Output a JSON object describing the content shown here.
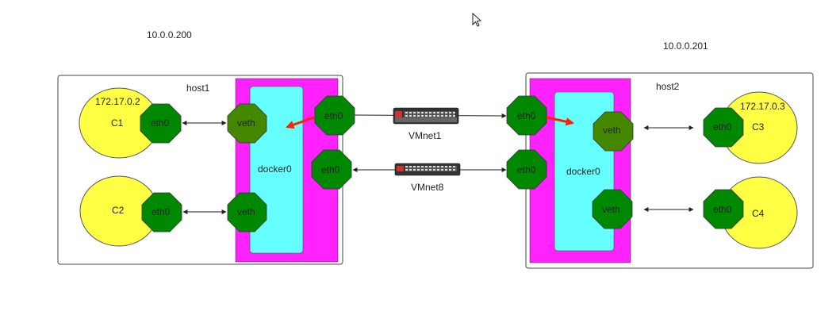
{
  "hosts": {
    "host1": {
      "name": "host1",
      "ip": "10.0.0.200",
      "bridge": "docker0"
    },
    "host2": {
      "name": "host2",
      "ip": "10.0.0.201",
      "bridge": "docker0"
    }
  },
  "containers": {
    "c1": {
      "name": "C1",
      "ip": "172.17.0.2",
      "iface": "eth0"
    },
    "c2": {
      "name": "C2",
      "iface": "eth0"
    },
    "c3": {
      "name": "C3",
      "ip": "172.17.0.3",
      "iface": "eth0"
    },
    "c4": {
      "name": "C4",
      "iface": "eth0"
    }
  },
  "interfaces": {
    "veth": "veth",
    "eth0": "eth0"
  },
  "switches": {
    "vmnet1": {
      "name": "VMnet1"
    },
    "vmnet8": {
      "name": "VMnet8"
    }
  },
  "colors": {
    "container": "#ffff44",
    "interface": "#008800",
    "veth_bridge": "#448800",
    "magenta": "#ff22ff",
    "cyan": "#66ffff",
    "arrow_red": "#ff2200",
    "switch": "#333333"
  },
  "icons": {
    "cursor": "mouse-cursor-icon",
    "switch": "network-switch-icon"
  }
}
